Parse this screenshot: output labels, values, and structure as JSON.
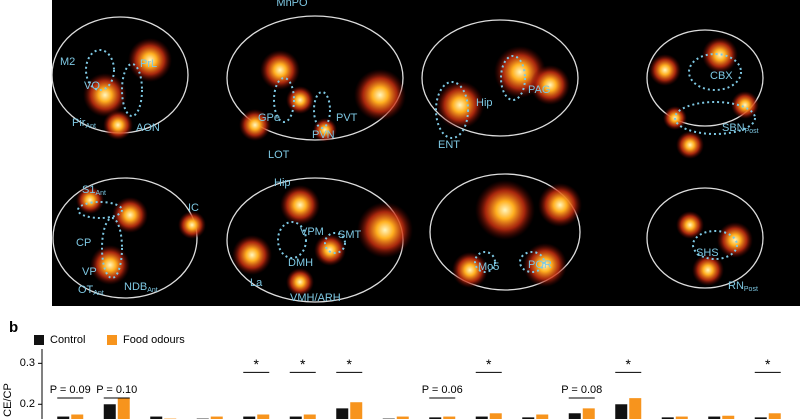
{
  "panel_a": {
    "top_label": "MnPO",
    "regions": [
      {
        "text": "M2"
      },
      {
        "text": "PrL"
      },
      {
        "text": "VO"
      },
      {
        "text": "Pir",
        "sub": "Ant"
      },
      {
        "text": "AON"
      },
      {
        "text": "PVT"
      },
      {
        "text": "GPe"
      },
      {
        "text": "PVN"
      },
      {
        "text": "LOT"
      },
      {
        "text": "ENT"
      },
      {
        "text": "Hip"
      },
      {
        "text": "PAG"
      },
      {
        "text": "CBX"
      },
      {
        "text": "SBN",
        "sub": "Post"
      },
      {
        "text": "S1",
        "sub": "Ant"
      },
      {
        "text": "IC"
      },
      {
        "text": "CP"
      },
      {
        "text": "VP"
      },
      {
        "text": "OT",
        "sub": "Ant"
      },
      {
        "text": "NDB",
        "sub": "Ant"
      },
      {
        "text": "Hip"
      },
      {
        "text": "VPM"
      },
      {
        "text": "SMT"
      },
      {
        "text": "DMH"
      },
      {
        "text": "La"
      },
      {
        "text": "VMH/ARH"
      },
      {
        "text": "Mo5"
      },
      {
        "text": "POR"
      },
      {
        "text": "SHS"
      },
      {
        "text": "RN",
        "sub": "Post"
      }
    ]
  },
  "panel_label": "b",
  "chart_data": {
    "type": "bar",
    "y_label": "CE/CP",
    "categories": [
      null,
      null,
      null,
      null,
      null,
      null,
      null,
      null,
      null,
      null,
      null,
      null,
      null,
      null,
      null,
      null
    ],
    "series": [
      {
        "name": "Control",
        "color": "#111111",
        "values": [
          0.17,
          0.2,
          0.17,
          0.165,
          0.17,
          0.17,
          0.19,
          0.165,
          0.168,
          0.17,
          0.168,
          0.178,
          0.2,
          0.168,
          0.17,
          0.168
        ]
      },
      {
        "name": "Food odours",
        "color": "#f7941d",
        "values": [
          0.175,
          0.215,
          0.165,
          0.17,
          0.175,
          0.175,
          0.205,
          0.17,
          0.17,
          0.178,
          0.175,
          0.19,
          0.215,
          0.17,
          0.172,
          0.178
        ]
      }
    ],
    "ylim": [
      0.165,
      0.335
    ],
    "yticks": [
      0.2,
      0.3
    ],
    "p_values": [
      "P = 0.09",
      "P = 0.10",
      "P = 0.06",
      "P = 0.08"
    ],
    "stars": [
      "*",
      "*",
      "*",
      "*",
      "*",
      "*"
    ]
  }
}
